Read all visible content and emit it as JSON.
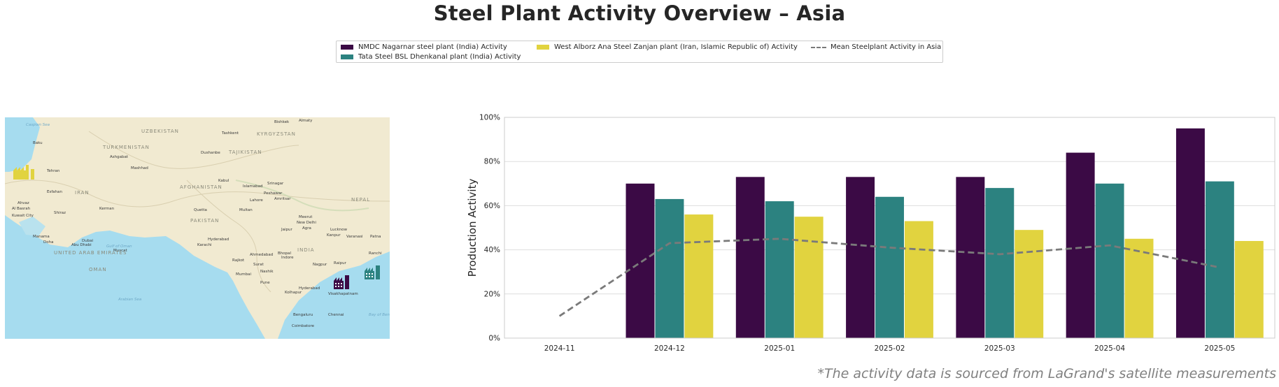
{
  "title": "Steel Plant Activity Overview – Asia",
  "footnote": "*The activity data is sourced from LaGrand's satellite measurements",
  "legend": [
    {
      "label": "NMDC Nagarnar steel plant (India) Activity",
      "color": "#3b0a45",
      "kind": "bar"
    },
    {
      "label": "Tata Steel BSL Dhenkanal plant (India) Activity",
      "color": "#2c8280",
      "kind": "bar"
    },
    {
      "label": "West Alborz Ana Steel Zanjan plant (Iran, Islamic Republic of) Activity",
      "color": "#e1d33f",
      "kind": "bar"
    },
    {
      "label": "Mean Steelplant Activity in Asia",
      "color": "#7a7a7a",
      "kind": "dashed-line"
    }
  ],
  "map": {
    "labels": [
      "Caspian Sea",
      "Baku",
      "UZBEKISTAN",
      "Tashkent",
      "KYRGYZSTAN",
      "Bishkek",
      "Almaty",
      "TURKMENISTAN",
      "Ashgabat",
      "Dushanbe",
      "TAJIKISTAN",
      "Tehran",
      "Mashhad",
      "AFGHANISTAN",
      "Kabul",
      "Islamabad",
      "Srinagar",
      "Esfahan",
      "IRAN",
      "Peshawar",
      "Lahore",
      "Amritsar",
      "Ahvaz",
      "Al Basrah",
      "Kuwait City",
      "Shiraz",
      "Kerman",
      "Quetta",
      "Multan",
      "Meerut",
      "New Delhi",
      "PAKISTAN",
      "Jaipur",
      "Agra",
      "Lucknow",
      "NEPAL",
      "Kanpur",
      "Varanasi",
      "Patna",
      "Manama",
      "Doha",
      "Abu Dhabi",
      "Dubai",
      "Muscat",
      "UNITED ARAB EMIRATES",
      "OMAN",
      "Hyderabad",
      "Karachi",
      "Gulf of Oman",
      "Ahmedabad",
      "Bhopal",
      "Indore",
      "INDIA",
      "Rajkot",
      "Surat",
      "Nagpur",
      "Raipur",
      "Ranchi",
      "Mumbai",
      "Nashik",
      "Pune",
      "Kolhapur",
      "Hyderabad",
      "Visakhapatnam",
      "Arabian Sea",
      "Bengaluru",
      "Chennai",
      "Coimbatore",
      "Bay of Bengal"
    ],
    "markers": [
      {
        "plant": "West Alborz Ana Steel Zanjan plant",
        "color": "#e1d33f",
        "icon": "factory-icon"
      },
      {
        "plant": "NMDC Nagarnar steel plant",
        "color": "#3b0a45",
        "icon": "factory-icon"
      },
      {
        "plant": "Tata Steel BSL Dhenkanal plant",
        "color": "#2c8280",
        "icon": "factory-icon"
      }
    ]
  },
  "chart_data": {
    "type": "bar",
    "title": "Steel Plant Activity Overview – Asia",
    "xlabel": "",
    "ylabel": "Production Activity",
    "ylim": [
      0,
      100
    ],
    "yticks": [
      0,
      20,
      40,
      60,
      80,
      100
    ],
    "ytick_labels": [
      "0%",
      "20%",
      "40%",
      "60%",
      "80%",
      "100%"
    ],
    "grid": true,
    "legend_position": "top-center",
    "categories": [
      "2024-11",
      "2024-12",
      "2025-01",
      "2025-02",
      "2025-03",
      "2025-04",
      "2025-05"
    ],
    "series": [
      {
        "name": "NMDC Nagarnar steel plant (India) Activity",
        "type": "bar",
        "color": "#3b0a45",
        "values": [
          null,
          70,
          73,
          73,
          73,
          84,
          95
        ]
      },
      {
        "name": "Tata Steel BSL Dhenkanal plant (India) Activity",
        "type": "bar",
        "color": "#2c8280",
        "values": [
          null,
          63,
          62,
          64,
          68,
          70,
          71
        ]
      },
      {
        "name": "West Alborz Ana Steel Zanjan plant (Iran, Islamic Republic of) Activity",
        "type": "bar",
        "color": "#e1d33f",
        "values": [
          null,
          56,
          55,
          53,
          49,
          45,
          44
        ]
      },
      {
        "name": "Mean Steelplant Activity in Asia",
        "type": "line",
        "style": "dashed",
        "color": "#7a7a7a",
        "values": [
          10,
          43,
          45,
          41,
          38,
          42,
          32
        ]
      }
    ]
  }
}
